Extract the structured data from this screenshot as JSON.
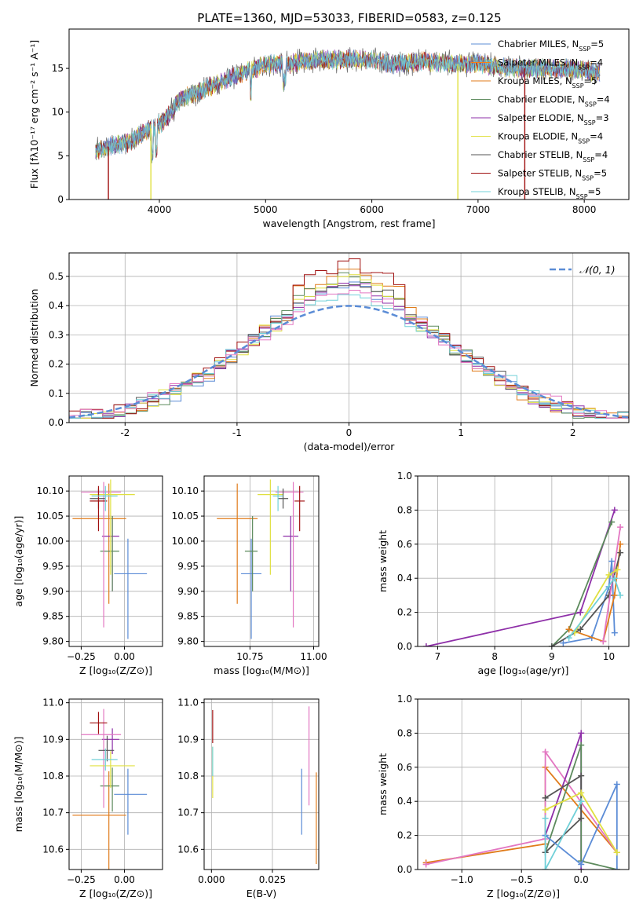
{
  "figure_title": "PLATE=1360, MJD=53033, FIBERID=0583, z=0.125",
  "colors": {
    "Chabrier MILES": "#5b8cd6",
    "Salpeter MILES": "#ff7f0e",
    "Kroupa MILES": "#e07b1a",
    "Chabrier ELODIE": "#5c8a5c",
    "Salpeter ELODIE": "#8e2fa8",
    "Kroupa ELODIE": "#e0e040",
    "Chabrier STELIB": "#555555",
    "Salpeter STELIB": "#a01010",
    "Kroupa STELIB": "#70d0d8",
    "Salpeter MILES alt": "#e377c2",
    "gauss": "#5b8cd6"
  },
  "chart_data": [
    {
      "id": "spectrum",
      "type": "line",
      "title": "PLATE=1360, MJD=53033, FIBERID=0583, z=0.125",
      "xlabel": "wavelength [Angstrom, rest frame]",
      "ylabel": "Flux [fλ10⁻¹⁷ erg cm⁻² s⁻¹ A⁻¹]",
      "xlim": [
        3150,
        8420
      ],
      "ylim": [
        0,
        19.5
      ],
      "xticks": [
        4000,
        5000,
        6000,
        7000,
        8000
      ],
      "yticks": [
        0,
        5,
        10,
        15
      ],
      "legend_position": "top-right",
      "legend": [
        {
          "label": "Chabrier MILES, N_SSP=5",
          "color": "#5b8cd6"
        },
        {
          "label": "Salpeter MILES, N_SSP=4",
          "color": "#ff7f0e"
        },
        {
          "label": "Kroupa MILES, N_SSP=5",
          "color": "#e07b1a"
        },
        {
          "label": "Chabrier ELODIE, N_SSP=4",
          "color": "#5c8a5c"
        },
        {
          "label": "Salpeter ELODIE, N_SSP=3",
          "color": "#8e2fa8"
        },
        {
          "label": "Kroupa ELODIE, N_SSP=4",
          "color": "#e0e040"
        },
        {
          "label": "Chabrier STELIB, N_SSP=4",
          "color": "#555555"
        },
        {
          "label": "Salpeter STELIB, N_SSP=5",
          "color": "#a01010"
        },
        {
          "label": "Kroupa STELIB, N_SSP=5",
          "color": "#70d0d8"
        }
      ],
      "continuum": [
        [
          3400,
          5.5
        ],
        [
          3500,
          6.0
        ],
        [
          3700,
          6.5
        ],
        [
          3900,
          8.0
        ],
        [
          4050,
          9.0
        ],
        [
          4200,
          11.5
        ],
        [
          4400,
          12.5
        ],
        [
          4600,
          13.5
        ],
        [
          4800,
          14.5
        ],
        [
          5000,
          15.5
        ],
        [
          5200,
          15.5
        ],
        [
          5500,
          16.0
        ],
        [
          5800,
          16.0
        ],
        [
          6000,
          16.0
        ],
        [
          6200,
          15.5
        ],
        [
          6500,
          15.8
        ],
        [
          6800,
          15.5
        ],
        [
          7000,
          15.5
        ],
        [
          7300,
          15.0
        ],
        [
          7600,
          15.0
        ],
        [
          7900,
          15.0
        ],
        [
          8150,
          14.5
        ]
      ],
      "drops": [
        {
          "x": 3520,
          "color": "#a01010"
        },
        {
          "x": 3920,
          "color": "#e0e040"
        },
        {
          "x": 6810,
          "color": "#e0e040"
        },
        {
          "x": 7440,
          "color": "#a01010"
        }
      ]
    },
    {
      "id": "residuals",
      "type": "histogram",
      "xlabel": "(data-model)/error",
      "ylabel": "Normed distribution",
      "xlim": [
        -2.5,
        2.5
      ],
      "ylim": [
        0,
        0.58
      ],
      "xticks": [
        -2,
        -1,
        0,
        1,
        2
      ],
      "yticks": [
        0.0,
        0.1,
        0.2,
        0.3,
        0.4,
        0.5
      ],
      "legend_position": "top-right",
      "legend": [
        {
          "label": "𝒩(0, 1)",
          "color": "#5b8cd6",
          "style": "dashed"
        }
      ],
      "bin_width": 0.1,
      "peak_heights": [
        0.47,
        0.52,
        0.5,
        0.48,
        0.5,
        0.49,
        0.55,
        0.45,
        0.46,
        0.44
      ]
    },
    {
      "id": "age_vs_Z",
      "type": "errorbar",
      "xlabel": "Z [log₁₀(Z/Z⊙)]",
      "ylabel": "age  [log₁₀(age/yr)]",
      "xlim": [
        -0.32,
        0.22
      ],
      "ylim": [
        9.79,
        10.13
      ],
      "xticks": [
        -0.25,
        0.0
      ],
      "xtick_labels": [
        "−0.25",
        "0.00"
      ],
      "yticks": [
        9.8,
        9.85,
        9.9,
        9.95,
        10.0,
        10.05,
        10.1
      ],
      "points": [
        {
          "x": 0.02,
          "xerr": [
            0.08,
            0.11
          ],
          "y": 9.935,
          "yerr": [
            0.13,
            0.07
          ],
          "color": "#5b8cd6"
        },
        {
          "x": -0.09,
          "xerr": [
            0.21,
            0.1
          ],
          "y": 10.045,
          "yerr": [
            0.17,
            0.07
          ],
          "color": "#e07b1a"
        },
        {
          "x": -0.07,
          "xerr": [
            0.06,
            0.04
          ],
          "y": 10.01,
          "yerr": [
            0.11,
            0.04
          ],
          "color": "#8e2fa8"
        },
        {
          "x": -0.07,
          "xerr": [
            0.07,
            0.04
          ],
          "y": 9.98,
          "yerr": [
            0.08,
            0.07
          ],
          "color": "#5c8a5c"
        },
        {
          "x": -0.12,
          "xerr": [
            0.13,
            0.1
          ],
          "y": 10.098,
          "yerr": [
            0.27,
            0.02
          ],
          "color": "#e377c2"
        },
        {
          "x": -0.08,
          "xerr": [
            0.12,
            0.14
          ],
          "y": 10.093,
          "yerr": [
            0.16,
            0.03
          ],
          "color": "#e0e040"
        },
        {
          "x": -0.15,
          "xerr": [
            0.05,
            0.04
          ],
          "y": 10.085,
          "yerr": [
            0.02,
            0.02
          ],
          "color": "#555555"
        },
        {
          "x": -0.15,
          "xerr": [
            0.05,
            0.05
          ],
          "y": 10.08,
          "yerr": [
            0.06,
            0.03
          ],
          "color": "#a01010"
        },
        {
          "x": -0.11,
          "xerr": [
            0.08,
            0.07
          ],
          "y": 10.09,
          "yerr": [
            0.03,
            0.02
          ],
          "color": "#70d0d8"
        }
      ]
    },
    {
      "id": "age_vs_mass",
      "type": "errorbar",
      "xlabel": "mass [log₁₀(M/M⊙)]",
      "ylabel": "",
      "xlim": [
        10.57,
        11.02
      ],
      "ylim": [
        9.79,
        10.13
      ],
      "xticks": [
        10.75,
        11.0
      ],
      "xtick_labels": [
        "10.75",
        "11.00"
      ],
      "yticks": [
        9.8,
        9.85,
        9.9,
        9.95,
        10.0,
        10.05,
        10.1
      ],
      "points": [
        {
          "x": 10.755,
          "xerr": [
            0.04,
            0.04
          ],
          "y": 9.935,
          "yerr": [
            0.13,
            0.07
          ],
          "color": "#5b8cd6"
        },
        {
          "x": 10.7,
          "xerr": [
            0.08,
            0.08
          ],
          "y": 10.045,
          "yerr": [
            0.17,
            0.07
          ],
          "color": "#e07b1a"
        },
        {
          "x": 10.91,
          "xerr": [
            0.03,
            0.03
          ],
          "y": 10.01,
          "yerr": [
            0.11,
            0.04
          ],
          "color": "#8e2fa8"
        },
        {
          "x": 10.76,
          "xerr": [
            0.03,
            0.02
          ],
          "y": 9.98,
          "yerr": [
            0.08,
            0.07
          ],
          "color": "#5c8a5c"
        },
        {
          "x": 10.92,
          "xerr": [
            0.07,
            0.04
          ],
          "y": 10.098,
          "yerr": [
            0.27,
            0.02
          ],
          "color": "#e377c2"
        },
        {
          "x": 10.83,
          "xerr": [
            0.05,
            0.05
          ],
          "y": 10.093,
          "yerr": [
            0.16,
            0.03
          ],
          "color": "#e0e040"
        },
        {
          "x": 10.88,
          "xerr": [
            0.02,
            0.02
          ],
          "y": 10.085,
          "yerr": [
            0.02,
            0.02
          ],
          "color": "#555555"
        },
        {
          "x": 10.945,
          "xerr": [
            0.02,
            0.02
          ],
          "y": 10.08,
          "yerr": [
            0.06,
            0.03
          ],
          "color": "#a01010"
        },
        {
          "x": 10.86,
          "xerr": [
            0.02,
            0.02
          ],
          "y": 10.09,
          "yerr": [
            0.03,
            0.02
          ],
          "color": "#70d0d8"
        }
      ]
    },
    {
      "id": "weight_vs_age",
      "type": "line",
      "xlabel": "age  [log₁₀(age/yr)]",
      "ylabel": "mass weight",
      "xlim": [
        6.65,
        10.35
      ],
      "ylim": [
        0,
        1.0
      ],
      "xticks": [
        7,
        8,
        9,
        10
      ],
      "yticks": [
        0.0,
        0.2,
        0.4,
        0.6,
        0.8,
        1.0
      ],
      "series": [
        {
          "color": "#8e2fa8",
          "points": [
            [
              6.8,
              0.0
            ],
            [
              9.5,
              0.2
            ],
            [
              10.1,
              0.8
            ]
          ]
        },
        {
          "color": "#5c8a5c",
          "points": [
            [
              9.0,
              0.0
            ],
            [
              9.3,
              0.1
            ],
            [
              10.05,
              0.73
            ]
          ]
        },
        {
          "color": "#5b8cd6",
          "points": [
            [
              9.2,
              0.02
            ],
            [
              9.7,
              0.05
            ],
            [
              10.0,
              0.35
            ],
            [
              10.05,
              0.5
            ],
            [
              10.1,
              0.08
            ]
          ]
        },
        {
          "color": "#e07b1a",
          "points": [
            [
              9.3,
              0.1
            ],
            [
              9.9,
              0.03
            ],
            [
              10.1,
              0.3
            ],
            [
              10.2,
              0.6
            ]
          ]
        },
        {
          "color": "#555555",
          "points": [
            [
              9.0,
              0.0
            ],
            [
              9.5,
              0.1
            ],
            [
              10.0,
              0.3
            ],
            [
              10.2,
              0.55
            ]
          ]
        },
        {
          "color": "#e377c2",
          "points": [
            [
              9.9,
              0.03
            ],
            [
              10.2,
              0.7
            ]
          ]
        },
        {
          "color": "#e0e040",
          "points": [
            [
              9.4,
              0.08
            ],
            [
              10.0,
              0.42
            ],
            [
              10.15,
              0.45
            ]
          ]
        },
        {
          "color": "#70d0d8",
          "points": [
            [
              9.3,
              0.05
            ],
            [
              10.1,
              0.4
            ],
            [
              10.2,
              0.3
            ]
          ]
        }
      ]
    },
    {
      "id": "mass_vs_Z",
      "type": "errorbar",
      "xlabel": "Z [log₁₀(Z/Z⊙)]",
      "ylabel": "mass [log₁₀(M/M⊙)]",
      "xlim": [
        -0.32,
        0.22
      ],
      "ylim": [
        10.545,
        11.01
      ],
      "xticks": [
        -0.25,
        0.0
      ],
      "xtick_labels": [
        "−0.25",
        "0.00"
      ],
      "yticks": [
        10.6,
        10.7,
        10.8,
        10.9,
        11.0
      ],
      "points": [
        {
          "x": 0.02,
          "xerr": [
            0.08,
            0.11
          ],
          "y": 10.75,
          "yerr": [
            0.11,
            0.07
          ],
          "color": "#5b8cd6"
        },
        {
          "x": -0.09,
          "xerr": [
            0.21,
            0.1
          ],
          "y": 10.693,
          "yerr": [
            0.15,
            0.12
          ],
          "color": "#e07b1a"
        },
        {
          "x": -0.07,
          "xerr": [
            0.06,
            0.04
          ],
          "y": 10.9,
          "yerr": [
            0.04,
            0.03
          ],
          "color": "#8e2fa8"
        },
        {
          "x": -0.07,
          "xerr": [
            0.07,
            0.04
          ],
          "y": 10.773,
          "yerr": [
            0.07,
            0.05
          ],
          "color": "#5c8a5c"
        },
        {
          "x": -0.12,
          "xerr": [
            0.13,
            0.1
          ],
          "y": 10.913,
          "yerr": [
            0.2,
            0.07
          ],
          "color": "#e377c2"
        },
        {
          "x": -0.08,
          "xerr": [
            0.12,
            0.14
          ],
          "y": 10.828,
          "yerr": [
            0.06,
            0.04
          ],
          "color": "#e0e040"
        },
        {
          "x": -0.1,
          "xerr": [
            0.05,
            0.04
          ],
          "y": 10.87,
          "yerr": [
            0.03,
            0.04
          ],
          "color": "#555555"
        },
        {
          "x": -0.15,
          "xerr": [
            0.05,
            0.05
          ],
          "y": 10.945,
          "yerr": [
            0.03,
            0.03
          ],
          "color": "#a01010"
        },
        {
          "x": -0.11,
          "xerr": [
            0.08,
            0.07
          ],
          "y": 10.845,
          "yerr": [
            0.03,
            0.03
          ],
          "color": "#70d0d8"
        }
      ]
    },
    {
      "id": "mass_vs_ebv",
      "type": "errorbar",
      "xlabel": "E(B-V)",
      "ylabel": "",
      "xlim": [
        -0.003,
        0.044
      ],
      "ylim": [
        10.545,
        11.01
      ],
      "xticks": [
        0.0,
        0.025
      ],
      "xtick_labels": [
        "0.000",
        "0.025"
      ],
      "yticks": [
        10.6,
        10.7,
        10.8,
        10.9,
        11.0
      ],
      "points": [
        {
          "x": 0.037,
          "xerr": [
            0,
            0
          ],
          "y": 10.73,
          "yerr": [
            0.09,
            0.09
          ],
          "color": "#5b8cd6"
        },
        {
          "x": 0.043,
          "xerr": [
            0,
            0
          ],
          "y": 10.68,
          "yerr": [
            0.12,
            0.13
          ],
          "color": "#e07b1a"
        },
        {
          "x": 0.04,
          "xerr": [
            0,
            0
          ],
          "y": 10.85,
          "yerr": [
            0.13,
            0.14
          ],
          "color": "#e377c2"
        },
        {
          "x": 0.0005,
          "xerr": [
            0,
            0
          ],
          "y": 10.92,
          "yerr": [
            0.03,
            0.06
          ],
          "color": "#a01010"
        },
        {
          "x": 0.0005,
          "xerr": [
            0,
            0
          ],
          "y": 10.8,
          "yerr": [
            0.06,
            0.08
          ],
          "color": "#e0e040"
        },
        {
          "x": 0.0005,
          "xerr": [
            0,
            0
          ],
          "y": 10.84,
          "yerr": [
            0.04,
            0.04
          ],
          "color": "#70d0d8"
        }
      ]
    },
    {
      "id": "weight_vs_Z",
      "type": "line",
      "xlabel": "Z [log₁₀(Z/Z⊙)]",
      "ylabel": "mass weight",
      "xlim": [
        -1.37,
        0.4
      ],
      "ylim": [
        0,
        1.0
      ],
      "xticks": [
        -1.0,
        -0.5,
        0.0
      ],
      "xtick_labels": [
        "−1.0",
        "−0.5",
        "0.0"
      ],
      "yticks": [
        0.0,
        0.2,
        0.4,
        0.6,
        0.8,
        1.0
      ],
      "series": [
        {
          "color": "#e07b1a",
          "points": [
            [
              -1.3,
              0.04
            ],
            [
              -0.3,
              0.15
            ],
            [
              -0.3,
              0.6
            ],
            [
              0.3,
              0.1
            ]
          ]
        },
        {
          "color": "#e377c2",
          "points": [
            [
              -1.3,
              0.03
            ],
            [
              -0.3,
              0.18
            ],
            [
              -0.3,
              0.69
            ],
            [
              0.3,
              0.1
            ]
          ]
        },
        {
          "color": "#8e2fa8",
          "points": [
            [
              -0.3,
              0.2
            ],
            [
              0.0,
              0.8
            ],
            [
              0.0,
              0.0
            ]
          ]
        },
        {
          "color": "#5c8a5c",
          "points": [
            [
              -0.3,
              0.1
            ],
            [
              0.0,
              0.73
            ],
            [
              0.0,
              0.05
            ],
            [
              0.3,
              0.0
            ]
          ]
        },
        {
          "color": "#555555",
          "points": [
            [
              -0.3,
              0.42
            ],
            [
              0.0,
              0.55
            ],
            [
              0.0,
              0.3
            ],
            [
              -0.3,
              0.1
            ]
          ]
        },
        {
          "color": "#5b8cd6",
          "points": [
            [
              -0.3,
              0.2
            ],
            [
              0.0,
              0.03
            ],
            [
              0.3,
              0.5
            ],
            [
              0.3,
              0.0
            ]
          ]
        },
        {
          "color": "#e0e040",
          "points": [
            [
              -0.3,
              0.35
            ],
            [
              0.0,
              0.45
            ],
            [
              0.3,
              0.1
            ]
          ]
        },
        {
          "color": "#70d0d8",
          "points": [
            [
              -0.3,
              0.3
            ],
            [
              -0.3,
              0.0
            ],
            [
              0.0,
              0.4
            ]
          ]
        }
      ]
    }
  ]
}
